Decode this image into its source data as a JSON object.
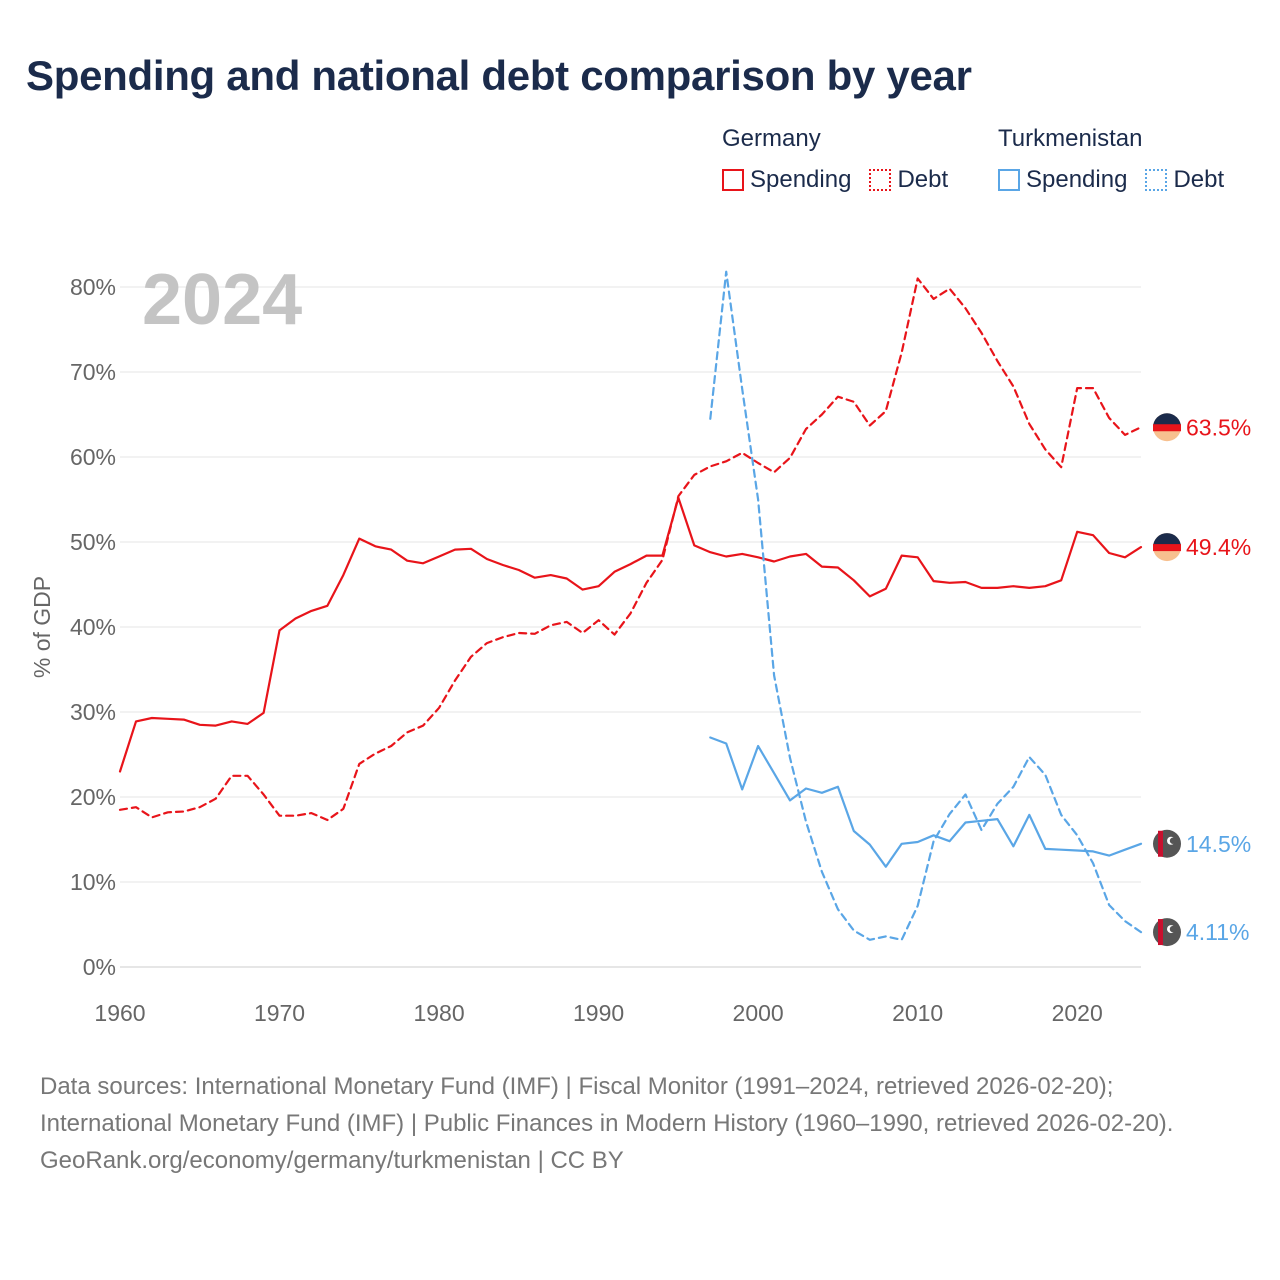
{
  "title": "Spending and national debt comparison by year",
  "legend": {
    "groups": [
      {
        "name": "Germany",
        "color": "#e8141a",
        "items": [
          {
            "label": "Spending",
            "style": "solid"
          },
          {
            "label": "Debt",
            "style": "dotted"
          }
        ]
      },
      {
        "name": "Turkmenistan",
        "color": "#5aa6e6",
        "items": [
          {
            "label": "Spending",
            "style": "solid"
          },
          {
            "label": "Debt",
            "style": "dotted"
          }
        ]
      }
    ]
  },
  "chart_data": {
    "type": "line",
    "year_label": "2024",
    "ylabel": "% of GDP",
    "xlim": [
      1960,
      2024
    ],
    "ylim": [
      0,
      80
    ],
    "x_ticks": [
      "1960",
      "1970",
      "1980",
      "1990",
      "2000",
      "2010",
      "2020"
    ],
    "y_ticks": [
      "0%",
      "10%",
      "20%",
      "30%",
      "40%",
      "50%",
      "60%",
      "70%",
      "80%"
    ],
    "grid": true,
    "series": [
      {
        "name": "Germany Spending",
        "country": "Germany",
        "kind": "Spending",
        "color": "#e8141a",
        "dash": false,
        "end_label": "49.4%",
        "flag": "germany-flag-icon",
        "x": [
          1960,
          1961,
          1962,
          1963,
          1964,
          1965,
          1966,
          1967,
          1968,
          1969,
          1970,
          1971,
          1972,
          1973,
          1974,
          1975,
          1976,
          1977,
          1978,
          1979,
          1980,
          1981,
          1982,
          1983,
          1984,
          1985,
          1986,
          1987,
          1988,
          1989,
          1990,
          1991,
          1992,
          1993,
          1994,
          1995,
          1996,
          1997,
          1998,
          1999,
          2000,
          2001,
          2002,
          2003,
          2004,
          2005,
          2006,
          2007,
          2008,
          2009,
          2010,
          2011,
          2012,
          2013,
          2014,
          2015,
          2016,
          2017,
          2018,
          2019,
          2020,
          2021,
          2022,
          2023,
          2024
        ],
        "y": [
          23,
          28.9,
          29.3,
          29.2,
          29.1,
          28.5,
          28.4,
          28.9,
          28.6,
          29.9,
          39.6,
          41,
          41.9,
          42.5,
          46.1,
          50.4,
          49.5,
          49.1,
          47.8,
          47.5,
          48.3,
          49.1,
          49.2,
          48,
          47.3,
          46.7,
          45.8,
          46.1,
          45.7,
          44.4,
          44.8,
          46.5,
          47.4,
          48.4,
          48.4,
          55.2,
          49.6,
          48.8,
          48.3,
          48.6,
          48.2,
          47.7,
          48.3,
          48.6,
          47.1,
          47.0,
          45.5,
          43.6,
          44.5,
          48.4,
          48.2,
          45.4,
          45.2,
          45.3,
          44.6,
          44.6,
          44.8,
          44.6,
          44.8,
          45.5,
          51.2,
          50.8,
          48.7,
          48.2,
          49.4
        ]
      },
      {
        "name": "Germany Debt",
        "country": "Germany",
        "kind": "Debt",
        "color": "#e8141a",
        "dash": true,
        "end_label": "63.5%",
        "flag": "germany-flag-icon",
        "x": [
          1960,
          1961,
          1962,
          1963,
          1964,
          1965,
          1966,
          1967,
          1968,
          1969,
          1970,
          1971,
          1972,
          1973,
          1974,
          1975,
          1976,
          1977,
          1978,
          1979,
          1980,
          1981,
          1982,
          1983,
          1984,
          1985,
          1986,
          1987,
          1988,
          1989,
          1990,
          1991,
          1992,
          1993,
          1994,
          1995,
          1996,
          1997,
          1998,
          1999,
          2000,
          2001,
          2002,
          2003,
          2004,
          2005,
          2006,
          2007,
          2008,
          2009,
          2010,
          2011,
          2012,
          2013,
          2014,
          2015,
          2016,
          2017,
          2018,
          2019,
          2020,
          2021,
          2022,
          2023,
          2024
        ],
        "y": [
          18.5,
          18.8,
          17.6,
          18.2,
          18.3,
          18.8,
          19.8,
          22.5,
          22.5,
          20.3,
          17.8,
          17.8,
          18.1,
          17.3,
          18.6,
          23.9,
          25.1,
          26,
          27.6,
          28.4,
          30.5,
          33.7,
          36.5,
          38.1,
          38.8,
          39.3,
          39.2,
          40.2,
          40.6,
          39.3,
          40.8,
          39.1,
          41.6,
          45.2,
          47.9,
          55.4,
          57.9,
          58.9,
          59.5,
          60.5,
          59.3,
          58.2,
          59.9,
          63.3,
          65,
          67.1,
          66.5,
          63.7,
          65.4,
          72.3,
          81,
          78.6,
          79.8,
          77.5,
          74.6,
          71.3,
          68.3,
          63.9,
          60.9,
          58.8,
          68.1,
          68.1,
          64.6,
          62.6,
          63.5
        ]
      },
      {
        "name": "Turkmenistan Spending",
        "country": "Turkmenistan",
        "kind": "Spending",
        "color": "#5aa6e6",
        "dash": false,
        "end_label": "14.5%",
        "flag": "turkmenistan-flag-icon",
        "x": [
          1997,
          1998,
          1999,
          2000,
          2001,
          2002,
          2003,
          2004,
          2005,
          2006,
          2007,
          2008,
          2009,
          2010,
          2011,
          2012,
          2013,
          2014,
          2015,
          2016,
          2017,
          2018,
          2019,
          2020,
          2021,
          2022,
          2023,
          2024
        ],
        "y": [
          27,
          26.3,
          20.9,
          26,
          22.8,
          19.6,
          21,
          20.5,
          21.2,
          16,
          14.4,
          11.8,
          14.5,
          14.7,
          15.5,
          14.8,
          17,
          17.2,
          17.4,
          14.2,
          17.9,
          13.9,
          13.8,
          13.7,
          13.6,
          13.1,
          13.8,
          14.5
        ]
      },
      {
        "name": "Turkmenistan Debt",
        "country": "Turkmenistan",
        "kind": "Debt",
        "color": "#5aa6e6",
        "dash": true,
        "end_label": "4.11%",
        "flag": "turkmenistan-flag-icon",
        "x": [
          1997,
          1998,
          1999,
          2000,
          2001,
          2002,
          2003,
          2004,
          2005,
          2006,
          2007,
          2008,
          2009,
          2010,
          2011,
          2012,
          2013,
          2014,
          2015,
          2016,
          2017,
          2018,
          2019,
          2020,
          2021,
          2022,
          2023,
          2024
        ],
        "y": [
          64.5,
          81.8,
          68,
          55,
          34.3,
          24.6,
          17.1,
          11.2,
          6.8,
          4.3,
          3.2,
          3.6,
          3.2,
          7.2,
          14.8,
          18,
          20.3,
          16.1,
          19.2,
          21.2,
          24.7,
          22.6,
          17.9,
          15.5,
          12.2,
          7.3,
          5.4,
          4.11
        ]
      }
    ]
  },
  "footer": {
    "sources": "Data sources: International Monetary Fund (IMF) | Fiscal Monitor (1991–2024, retrieved 2026-02-20); International Monetary Fund (IMF) | Public Finances in Modern History (1960–1990, retrieved 2026-02-20).",
    "credit": "GeoRank.org/economy/germany/turkmenistan | CC BY"
  }
}
